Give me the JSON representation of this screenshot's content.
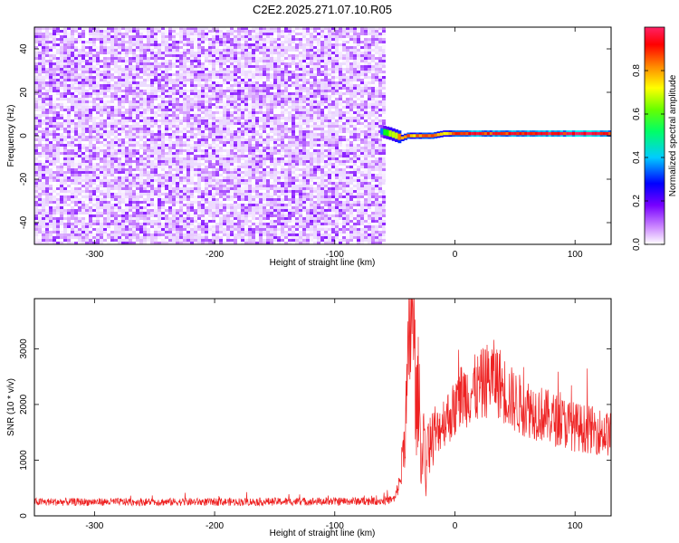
{
  "page": {
    "title": "C2E2.2025.271.07.10.R05"
  },
  "chart_data": [
    {
      "type": "heatmap",
      "title": "C2E2.2025.271.07.10.R05",
      "xlabel": "Height of straight line (km)",
      "ylabel": "Frequency (Hz)",
      "xlim": [
        -350,
        130
      ],
      "ylim": [
        -50,
        50
      ],
      "x_ticks": [
        -300,
        -200,
        -100,
        0,
        100
      ],
      "y_ticks": [
        -40,
        -20,
        0,
        20,
        40
      ],
      "colorbar": {
        "label": "Normalized spectral amplitude",
        "range": [
          0.0,
          1.0
        ],
        "ticks": [
          0.0,
          0.2,
          0.4,
          0.6,
          0.8
        ],
        "tick_labels": [
          "0.0",
          "0.2",
          "0.4",
          "0.6",
          "0.8"
        ],
        "colormap": [
          "#ffffff",
          "#cc88ff",
          "#7700ff",
          "#0000ff",
          "#00ffff",
          "#00ff00",
          "#ffff00",
          "#ff8800",
          "#ff0000",
          "#ff2266"
        ]
      },
      "noise_region": {
        "x": [
          -350,
          -58
        ],
        "freq": [
          -50,
          50
        ],
        "amplitude": [
          0.0,
          0.2
        ]
      },
      "signal_line": {
        "x": [
          -62,
          -55,
          -50,
          -45,
          -40,
          -35,
          -30,
          -20,
          -10,
          0,
          20,
          40,
          60,
          80,
          90,
          100,
          130
        ],
        "freq": [
          2,
          1,
          0,
          -1,
          0,
          0,
          0,
          0,
          1,
          1,
          1,
          1,
          1,
          1,
          1,
          1,
          1
        ],
        "amplitude": [
          0.45,
          0.55,
          0.7,
          0.8,
          0.85,
          0.7,
          0.8,
          0.85,
          0.75,
          0.8,
          0.9,
          0.85,
          0.9,
          0.95,
          0.9,
          0.95,
          0.9
        ]
      },
      "grid": false
    },
    {
      "type": "line",
      "xlabel": "Height of straight line (km)",
      "ylabel": "SNR (10 * v/v)",
      "xlim": [
        -350,
        130
      ],
      "ylim": [
        0,
        3900
      ],
      "x_ticks": [
        -300,
        -200,
        -100,
        0,
        100
      ],
      "y_ticks": [
        0,
        1000,
        2000,
        3000
      ],
      "color": "#ee2222",
      "grid": false,
      "series": [
        {
          "x": [
            -350,
            -300,
            -250,
            -200,
            -150,
            -100,
            -60,
            -50,
            -45,
            -42,
            -40,
            -38,
            -36,
            -34,
            -32,
            -30,
            -28,
            -26,
            -24,
            -22,
            -20,
            -15,
            -10,
            -5,
            0,
            5,
            10,
            15,
            20,
            25,
            30,
            35,
            40,
            45,
            50,
            55,
            60,
            70,
            80,
            90,
            100,
            110,
            120,
            130
          ],
          "y": [
            250,
            250,
            250,
            250,
            255,
            260,
            270,
            300,
            700,
            1500,
            2100,
            3000,
            3900,
            3200,
            1800,
            2400,
            800,
            1700,
            500,
            1500,
            1300,
            1500,
            1700,
            1800,
            1900,
            2150,
            2200,
            2250,
            2300,
            2400,
            2500,
            2450,
            2300,
            2150,
            2050,
            1980,
            1950,
            1850,
            1750,
            1680,
            1600,
            1560,
            1520,
            1450
          ],
          "noise_amplitude": 0.28
        }
      ]
    }
  ]
}
